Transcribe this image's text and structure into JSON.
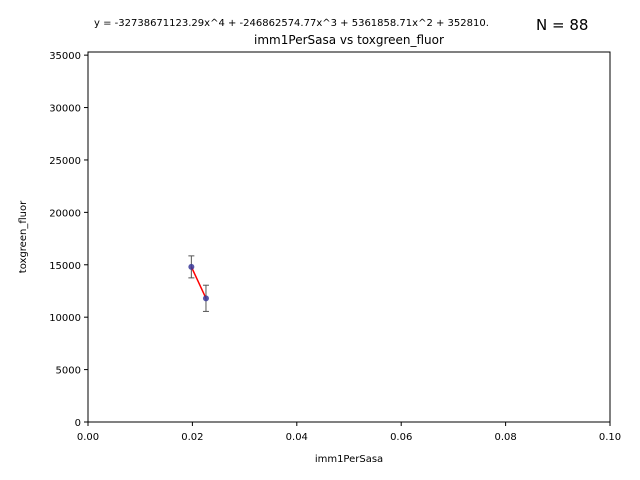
{
  "chart_data": {
    "type": "scatter",
    "title": "imm1PerSasa vs toxgreen_fluor",
    "xlabel": "imm1PerSasa",
    "ylabel": "toxgreen_fluor",
    "equation": "y = -32738671123.29x^4 + -246862574.77x^3 + 5361858.71x^2 + 352810.",
    "n_label": "N = 88",
    "xlim": [
      0,
      0.1
    ],
    "ylim": [
      0,
      35300
    ],
    "x_ticks": [
      0,
      0.02,
      0.04,
      0.06,
      0.08,
      0.1
    ],
    "x_tick_labels": [
      "0.00",
      "0.02",
      "0.04",
      "0.06",
      "0.08",
      "0.10"
    ],
    "y_ticks": [
      0,
      5000,
      10000,
      15000,
      20000,
      25000,
      30000,
      35000
    ],
    "y_tick_labels": [
      "0",
      "5000",
      "10000",
      "15000",
      "20000",
      "25000",
      "30000",
      "35000"
    ],
    "points": [
      {
        "x": 0.0198,
        "y": 14800,
        "err": 1050
      },
      {
        "x": 0.0226,
        "y": 11800,
        "err": 1250
      }
    ],
    "fit_line": [
      {
        "x": 0.0198,
        "y": 14800
      },
      {
        "x": 0.0226,
        "y": 11800
      }
    ],
    "colors": {
      "point": "#3a3a9a",
      "error_bar": "#555555",
      "fit_line": "#ff0000"
    },
    "grid": false
  }
}
